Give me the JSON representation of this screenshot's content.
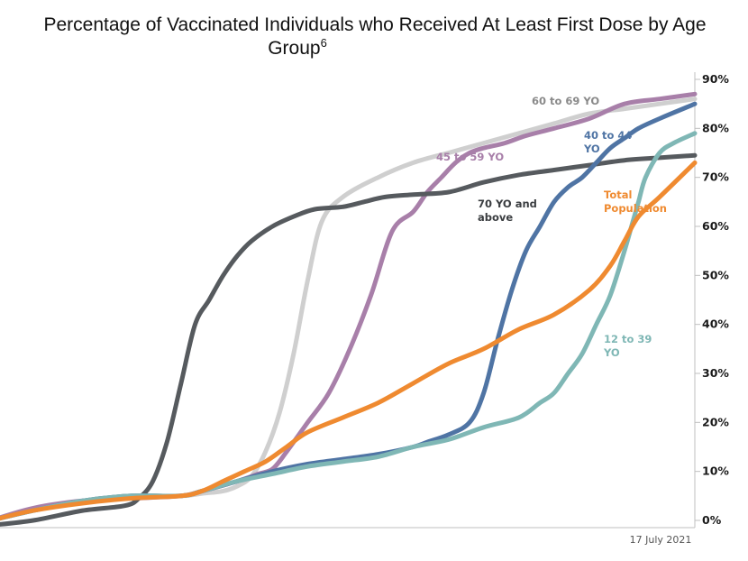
{
  "chart_data": {
    "type": "line",
    "title": "Percentage of Vaccinated Individuals who Received At Least First Dose by Age Group",
    "title_superscript": "6",
    "xlabel": "",
    "ylabel": "",
    "y_unit": "%",
    "ylim": [
      0,
      90
    ],
    "y_ticks": [
      0,
      10,
      20,
      30,
      40,
      50,
      60,
      70,
      80,
      90
    ],
    "y_tick_labels": [
      "0%",
      "10%",
      "20%",
      "30%",
      "40%",
      "50%",
      "60%",
      "70%",
      "80%",
      "90%"
    ],
    "y_axis_position": "right",
    "x_end_label": "17 July 2021",
    "x_range": [
      0,
      100
    ],
    "grid": false,
    "legend": "inline labels",
    "series": [
      {
        "name": "60 to 69 YO",
        "label_lines": [
          "60 to 69 YO"
        ],
        "color": "#cfcfcf",
        "x": [
          0,
          6,
          13,
          20,
          27,
          30,
          33,
          35,
          37,
          39,
          41,
          43,
          45,
          47,
          50,
          55,
          60,
          65,
          70,
          75,
          80,
          85,
          90,
          95,
          100
        ],
        "y": [
          0,
          2,
          4,
          5,
          5,
          5.5,
          6,
          7,
          9,
          14,
          22,
          34,
          49,
          61,
          66,
          70,
          73,
          75,
          77,
          79,
          81,
          83,
          84,
          85,
          86
        ]
      },
      {
        "name": "45 to 59 YO",
        "label_lines": [
          "45 to 59 YO"
        ],
        "color": "#a87fa9",
        "x": [
          0,
          6,
          13,
          20,
          27,
          30,
          35,
          38,
          40,
          42,
          45,
          48,
          51,
          54,
          57,
          60,
          62,
          64,
          66,
          68,
          70,
          73,
          76,
          80,
          85,
          90,
          95,
          100
        ],
        "y": [
          0,
          2.5,
          4,
          4.5,
          5,
          6,
          8,
          9.5,
          10.5,
          14,
          20,
          26,
          35,
          46,
          59,
          63,
          67,
          70,
          73,
          75,
          76,
          77,
          78.5,
          80,
          82,
          85,
          86,
          87
        ]
      },
      {
        "name": "70 YO and above",
        "label_lines": [
          "70 YO and",
          "above"
        ],
        "color": "#565a5e",
        "x": [
          0,
          6,
          13,
          19,
          21,
          23,
          25,
          27,
          29,
          31,
          33,
          35,
          37,
          40,
          43,
          46,
          50,
          53,
          56,
          60,
          65,
          70,
          75,
          80,
          85,
          90,
          95,
          100
        ],
        "y": [
          -1,
          0,
          2,
          3,
          4.5,
          8,
          16,
          28,
          40,
          45,
          50,
          54,
          57,
          60,
          62,
          63.5,
          64,
          65,
          66,
          66.5,
          67,
          69,
          70.5,
          71.5,
          72.5,
          73.5,
          74,
          74.5
        ]
      },
      {
        "name": "40 to 44 YO",
        "label_lines": [
          "40 to 44",
          "YO"
        ],
        "color": "#4f74a4",
        "x": [
          0,
          6,
          13,
          20,
          27,
          30,
          35,
          40,
          45,
          50,
          55,
          60,
          62,
          65,
          68,
          70,
          72,
          74,
          76,
          78,
          80,
          82,
          84,
          86,
          88,
          90,
          92,
          95,
          100
        ],
        "y": [
          0,
          2,
          4,
          5,
          5,
          6,
          8,
          10,
          11.5,
          12.5,
          13.5,
          15,
          16,
          17.5,
          20,
          26,
          37,
          47,
          55,
          60,
          65,
          68,
          70,
          73,
          76,
          78,
          80,
          82,
          85
        ]
      },
      {
        "name": "12 to 39 YO",
        "label_lines": [
          "12 to 39",
          "YO"
        ],
        "color": "#7fb7b5",
        "x": [
          0,
          6,
          13,
          20,
          27,
          30,
          35,
          40,
          45,
          50,
          55,
          60,
          65,
          70,
          75,
          78,
          80,
          82,
          84,
          86,
          88,
          90,
          91,
          92,
          93,
          95,
          97,
          100
        ],
        "y": [
          0,
          2,
          4,
          5,
          5,
          6,
          8,
          9.5,
          11,
          12,
          13,
          15,
          16.5,
          19,
          21,
          24,
          26,
          30,
          34,
          40,
          46,
          55,
          60,
          65,
          70,
          75,
          77,
          79
        ]
      },
      {
        "name": "Total Population",
        "label_lines": [
          "Total",
          "Population"
        ],
        "color": "#ef8a30",
        "x": [
          0,
          6,
          13,
          20,
          27,
          30,
          33,
          36,
          39,
          42,
          45,
          50,
          55,
          60,
          65,
          70,
          75,
          80,
          85,
          88,
          90,
          92,
          95,
          100
        ],
        "y": [
          0,
          2,
          3.5,
          4.5,
          5,
          6,
          8,
          10,
          12,
          15,
          18,
          21,
          24,
          28,
          32,
          35,
          39,
          42,
          47,
          52,
          57,
          62,
          66,
          73
        ]
      }
    ]
  }
}
